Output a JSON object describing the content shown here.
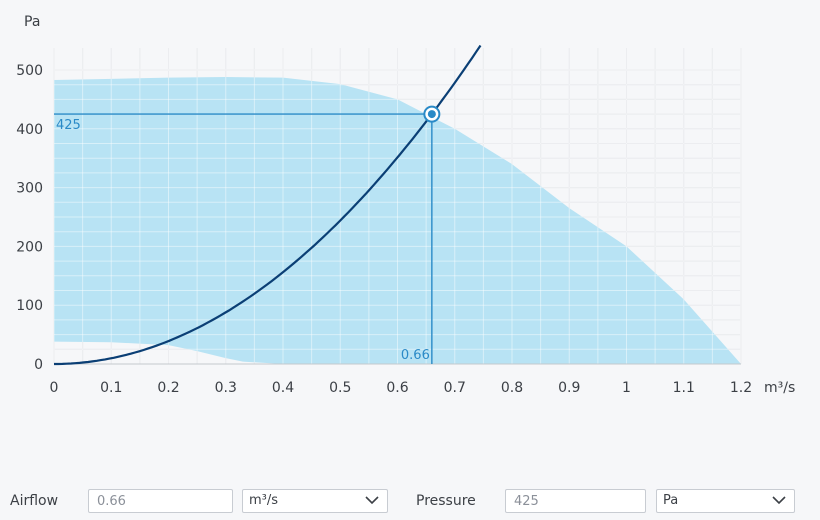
{
  "chart_data": {
    "type": "area",
    "xlabel": "m³/s",
    "ylabel": "Pa",
    "xlim": [
      0,
      1.2
    ],
    "ylim": [
      0,
      500
    ],
    "x_ticks": [
      "0",
      "0.1",
      "0.2",
      "0.3",
      "0.4",
      "0.5",
      "0.6",
      "0.7",
      "0.8",
      "0.9",
      "1",
      "1.1",
      "1.2"
    ],
    "y_ticks": [
      "0",
      "100",
      "200",
      "300",
      "400",
      "500"
    ],
    "grid": true,
    "operating_region": {
      "upper": [
        [
          0,
          483
        ],
        [
          0.1,
          485
        ],
        [
          0.2,
          487
        ],
        [
          0.3,
          488
        ],
        [
          0.4,
          487
        ],
        [
          0.5,
          476
        ],
        [
          0.6,
          450
        ],
        [
          0.7,
          400
        ],
        [
          0.8,
          340
        ],
        [
          0.9,
          265
        ],
        [
          1.0,
          200
        ],
        [
          1.1,
          110
        ],
        [
          1.2,
          0
        ]
      ],
      "lower": [
        [
          0,
          38
        ],
        [
          0.1,
          37
        ],
        [
          0.2,
          32
        ],
        [
          0.25,
          22
        ],
        [
          0.3,
          10
        ],
        [
          0.33,
          4
        ],
        [
          0.4,
          0
        ],
        [
          1.2,
          0
        ]
      ]
    },
    "system_curve": {
      "k": 976,
      "x": [
        0,
        0.05,
        0.1,
        0.15,
        0.2,
        0.25,
        0.3,
        0.35,
        0.4,
        0.45,
        0.5,
        0.55,
        0.6,
        0.664,
        0.7,
        0.745
      ],
      "y": [
        0,
        2.4,
        9.8,
        22,
        39,
        61,
        88,
        120,
        156,
        198,
        244,
        295,
        351,
        425,
        478,
        542
      ]
    },
    "operating_point": {
      "x": 0.66,
      "y": 425
    },
    "readout_x": "0.66",
    "readout_y": "425"
  },
  "controls": {
    "airflow_label": "Airflow",
    "airflow_value": "0.66",
    "airflow_unit": "m³/s",
    "pressure_label": "Pressure",
    "pressure_value": "425",
    "pressure_unit": "Pa",
    "chevron_icon": "chevron-down-icon"
  },
  "colors": {
    "region_fill": "#b8e3f4",
    "curve": "#0b3f75",
    "guide": "#2a8ac7",
    "grid": "#dcdfe3"
  }
}
